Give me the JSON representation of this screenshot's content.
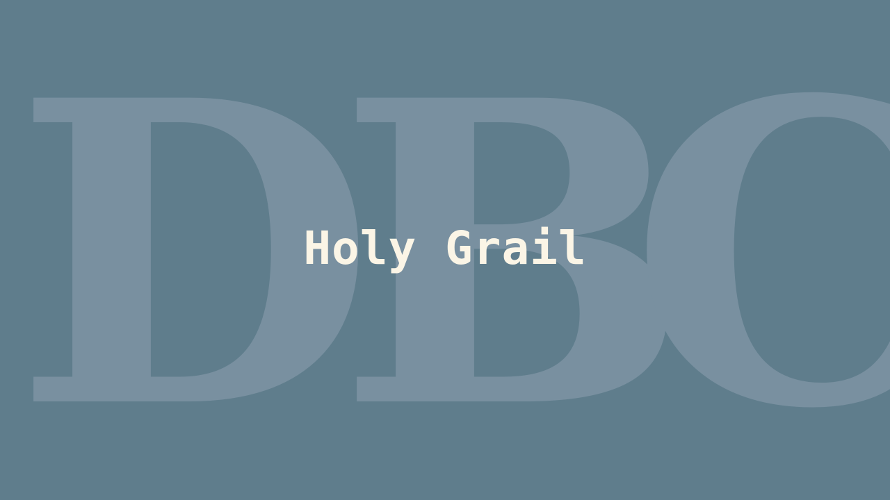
{
  "background": {
    "color": "#5f7d8c",
    "letters": [
      "D",
      "B",
      "C"
    ],
    "letter_color": "#7990a0"
  },
  "title": {
    "text": "Holy Grail",
    "color": "#fbf5e6"
  }
}
